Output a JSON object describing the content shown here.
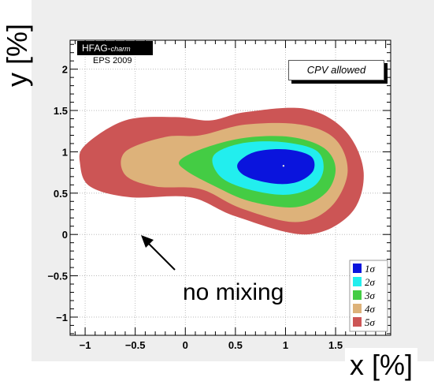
{
  "header": {
    "brand": "HFAG-",
    "brand_sub": "charm",
    "edition": "EPS 2009"
  },
  "annotation": {
    "cpv": "CPV allowed",
    "no_mixing": "no mixing"
  },
  "chart_data": {
    "type": "contour",
    "xlabel": "x [%]",
    "ylabel": "y [%]",
    "xlim": [
      -1.15,
      2.05
    ],
    "ylim": [
      -1.22,
      2.35
    ],
    "x_ticks": [
      "-1",
      "-0.5",
      "0",
      "0.5",
      "1",
      "1.5"
    ],
    "y_ticks": [
      "-1",
      "-0.5",
      "0",
      "0.5",
      "1",
      "1.5",
      "2"
    ],
    "grid": true,
    "central_value": {
      "x": 0.98,
      "y": 0.83
    },
    "no_mixing_point": {
      "x": 0,
      "y": 0
    },
    "legend_position": "bottom-right",
    "legend": [
      "1σ",
      "2σ",
      "3σ",
      "4σ",
      "5σ"
    ],
    "regions": [
      {
        "name": "5σ",
        "color": "#cc5555",
        "outline": [
          [
            -1.0,
            1.08
          ],
          [
            -0.6,
            1.38
          ],
          [
            -0.1,
            1.42
          ],
          [
            0.25,
            1.38
          ],
          [
            0.6,
            1.48
          ],
          [
            1.2,
            1.52
          ],
          [
            1.6,
            1.25
          ],
          [
            1.78,
            0.75
          ],
          [
            1.65,
            0.25
          ],
          [
            1.2,
            0.0
          ],
          [
            0.5,
            0.22
          ],
          [
            0.05,
            0.45
          ],
          [
            -0.55,
            0.45
          ],
          [
            -0.95,
            0.58
          ],
          [
            -1.05,
            0.85
          ]
        ]
      },
      {
        "name": "4σ",
        "color": "#ddb27a",
        "outline": [
          [
            -0.6,
            1.0
          ],
          [
            -0.2,
            1.18
          ],
          [
            0.15,
            1.2
          ],
          [
            0.6,
            1.33
          ],
          [
            1.15,
            1.33
          ],
          [
            1.5,
            1.15
          ],
          [
            1.62,
            0.75
          ],
          [
            1.45,
            0.33
          ],
          [
            1.1,
            0.15
          ],
          [
            0.55,
            0.32
          ],
          [
            0.15,
            0.55
          ],
          [
            -0.3,
            0.58
          ],
          [
            -0.6,
            0.72
          ]
        ]
      },
      {
        "name": "3σ",
        "color": "#44cc44",
        "outline": [
          [
            -0.05,
            0.9
          ],
          [
            0.2,
            1.05
          ],
          [
            0.6,
            1.17
          ],
          [
            1.05,
            1.18
          ],
          [
            1.38,
            1.05
          ],
          [
            1.5,
            0.8
          ],
          [
            1.4,
            0.5
          ],
          [
            1.1,
            0.33
          ],
          [
            0.65,
            0.4
          ],
          [
            0.3,
            0.58
          ],
          [
            0.0,
            0.78
          ]
        ]
      },
      {
        "name": "2σ",
        "color": "#22eeee",
        "outline": [
          [
            0.28,
            0.95
          ],
          [
            0.55,
            1.1
          ],
          [
            0.95,
            1.12
          ],
          [
            1.3,
            1.02
          ],
          [
            1.38,
            0.8
          ],
          [
            1.28,
            0.58
          ],
          [
            1.0,
            0.48
          ],
          [
            0.62,
            0.55
          ],
          [
            0.35,
            0.7
          ]
        ]
      },
      {
        "name": "1σ",
        "color": "#0a14dd",
        "outline": [
          [
            0.53,
            0.87
          ],
          [
            0.7,
            1.0
          ],
          [
            1.0,
            1.03
          ],
          [
            1.25,
            0.95
          ],
          [
            1.28,
            0.78
          ],
          [
            1.15,
            0.65
          ],
          [
            0.95,
            0.61
          ],
          [
            0.7,
            0.66
          ],
          [
            0.55,
            0.75
          ]
        ]
      }
    ]
  }
}
